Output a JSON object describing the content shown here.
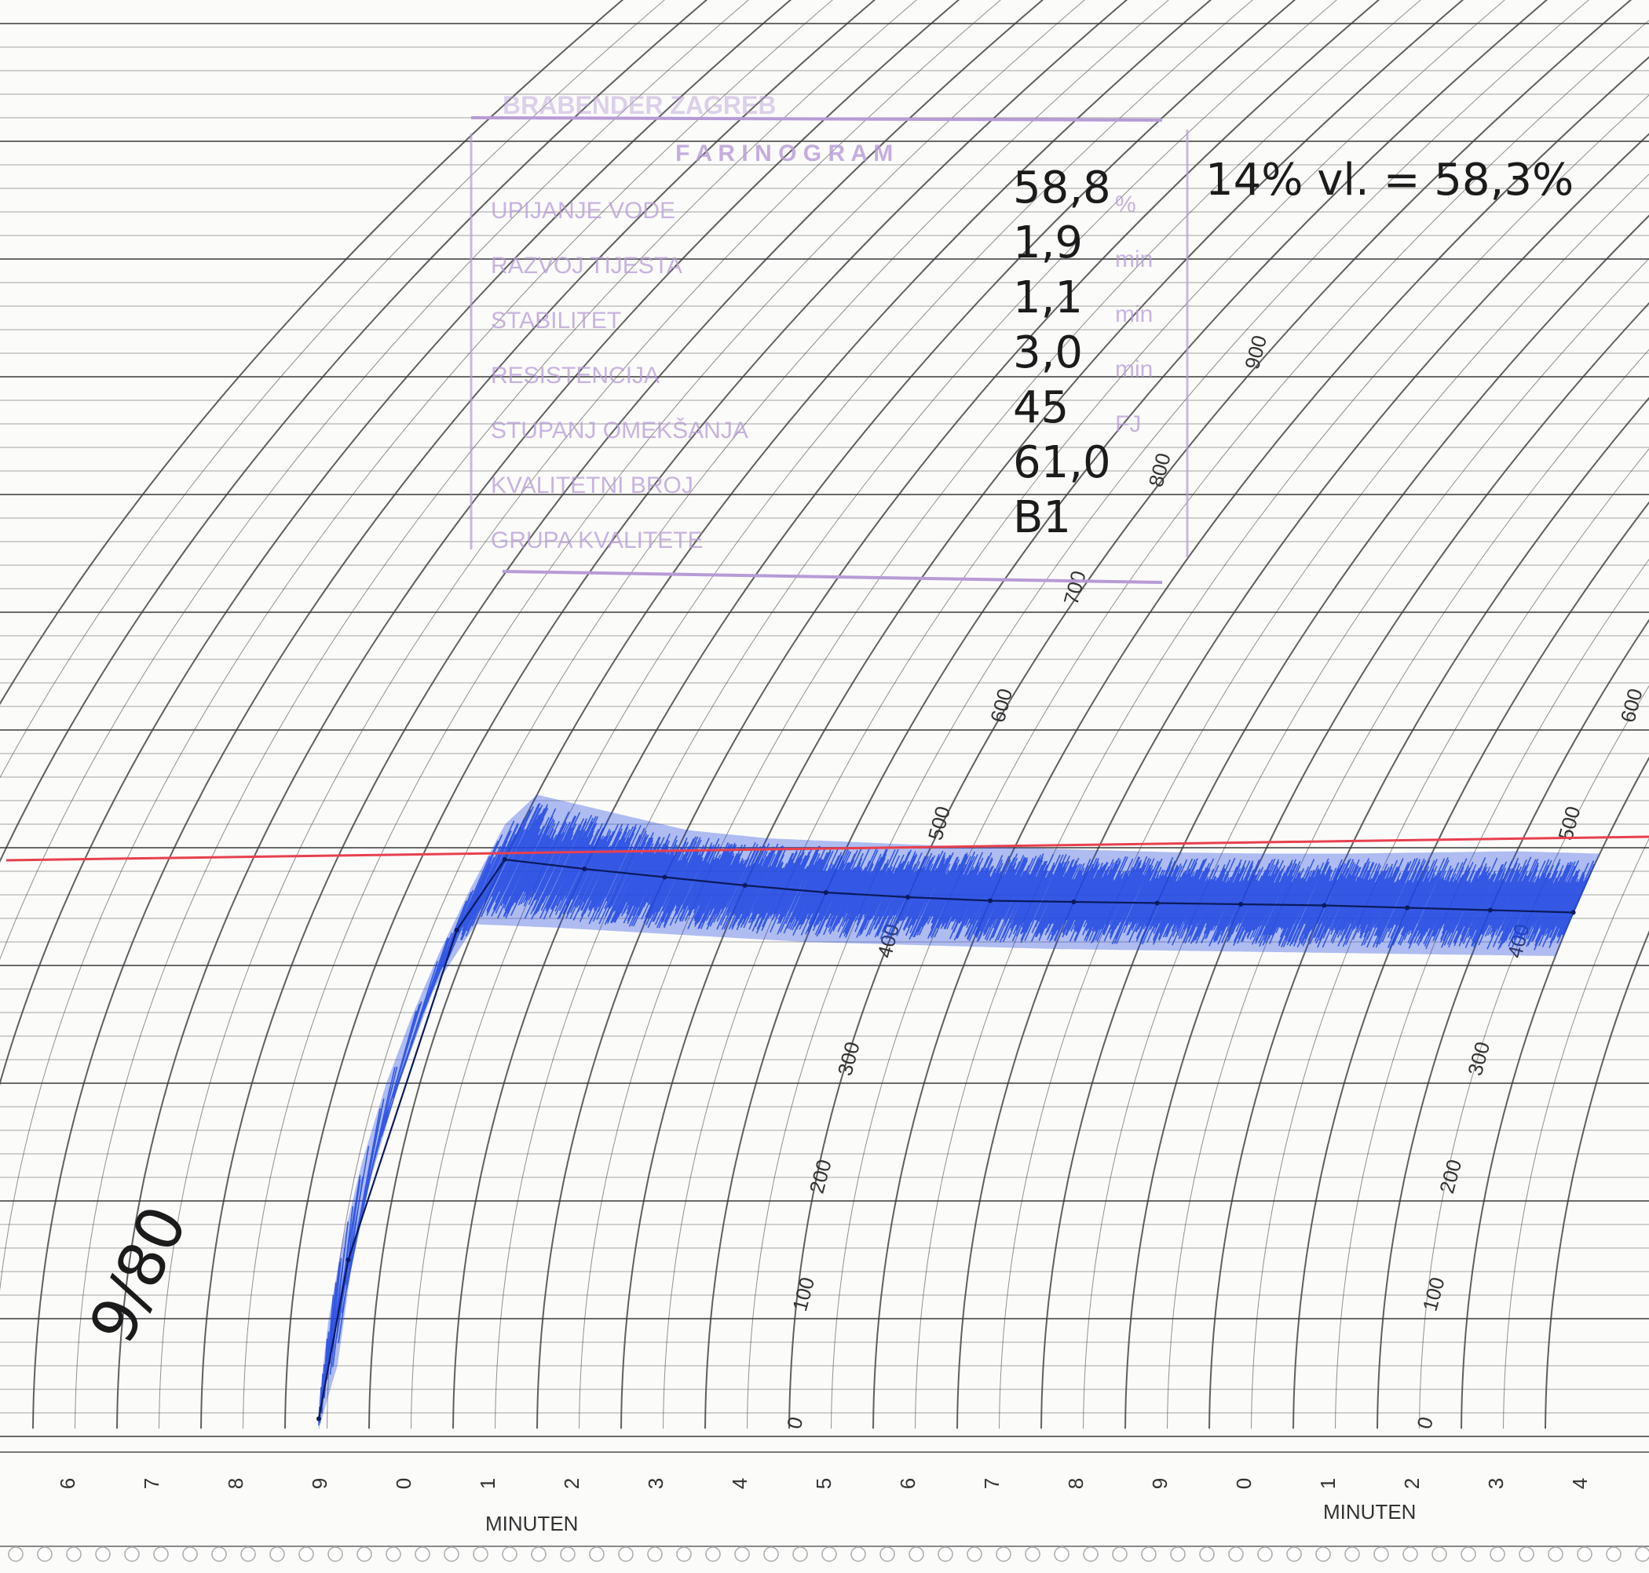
{
  "chart_data": {
    "type": "line",
    "title": "FARINOGRAM",
    "xlabel": "MINUTEN",
    "ylabel": "",
    "ylim": [
      0,
      950
    ],
    "y_ticks": [
      "0",
      "100",
      "200",
      "300",
      "400",
      "500",
      "600",
      "700",
      "800",
      "900"
    ],
    "x_tick_labels": [
      "6",
      "7",
      "8",
      "9",
      "0",
      "1",
      "2",
      "3",
      "4",
      "5",
      "6",
      "7",
      "8",
      "9",
      "0",
      "1",
      "2",
      "3",
      "4"
    ],
    "x_axis_label": "MINUTEN",
    "x_axis_label_repeat": "MINUTEN",
    "reference_line_value": 500,
    "series": [
      {
        "x": [
          -0.6,
          -0.4,
          -0.2,
          0.0,
          1.0,
          2.0,
          3.0,
          4.0,
          5.0,
          6.0,
          7.0,
          8.0,
          9.0,
          10.0,
          11.0,
          12.0,
          13.0
        ],
        "upper": [
          30,
          300,
          520,
          545,
          530,
          515,
          508,
          505,
          502,
          500,
          498,
          496,
          495,
          495,
          496,
          497,
          495
        ],
        "values": [
          15,
          150,
          430,
          490,
          482,
          475,
          468,
          462,
          458,
          455,
          454,
          453,
          452,
          451,
          449,
          447,
          445
        ],
        "lower": [
          5,
          60,
          380,
          435,
          432,
          428,
          424,
          420,
          418,
          416,
          414,
          413,
          412,
          411,
          410,
          409,
          408
        ]
      }
    ],
    "grid": true,
    "colors": {
      "curve": "#1f47e0",
      "reference_line": "#e8404e",
      "grid": "#3a3a3a",
      "stamp": "#b79bd6"
    }
  },
  "form": {
    "header": "BRABENDER ZAGREB",
    "title": "F A R I N O G R A M",
    "rows": [
      {
        "label": "UPIJANJE VODE",
        "value": "58,8",
        "unit": "%"
      },
      {
        "label": "RAZVOJ TIJESTA",
        "value": "1,9",
        "unit": "min"
      },
      {
        "label": "STABILITET",
        "value": "1,1",
        "unit": "min"
      },
      {
        "label": "RESISTENCIJA",
        "value": "3,0",
        "unit": "min"
      },
      {
        "label": "STUPANJ OMEKŠANJA",
        "value": "45",
        "unit": "FJ"
      },
      {
        "label": "KVALITETNI BROJ",
        "value": "61,0",
        "unit": ""
      },
      {
        "label": "GRUPA KVALITETE",
        "value": "B1",
        "unit": ""
      }
    ],
    "note": "14% vl. = 58,3%",
    "margin_note": "9/80"
  }
}
